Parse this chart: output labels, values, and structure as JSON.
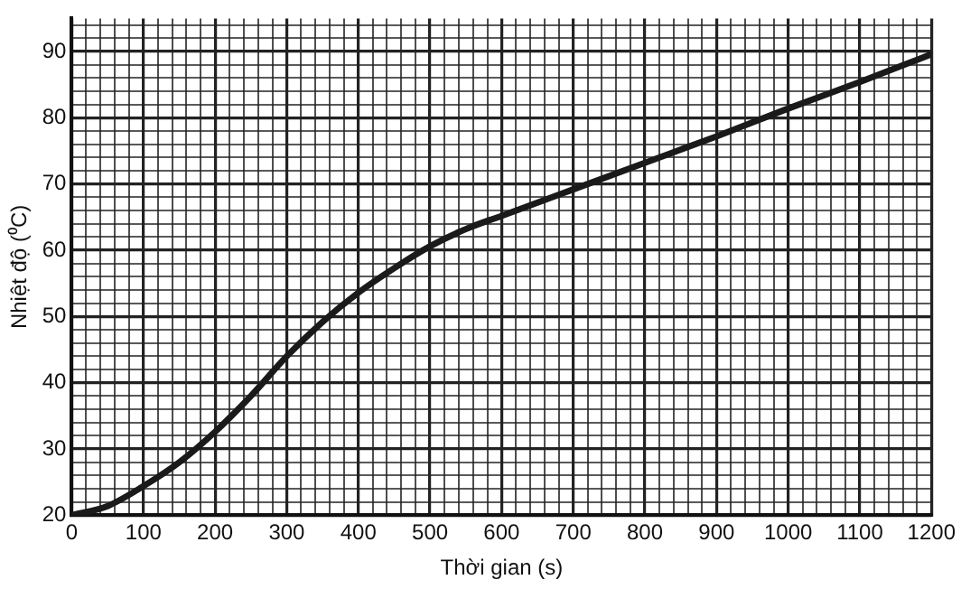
{
  "chart_data": {
    "type": "line",
    "xlabel": "Thời gian (s)",
    "ylabel": "Nhiệt độ (⁰C)",
    "x": [
      0,
      50,
      100,
      150,
      200,
      250,
      300,
      350,
      400,
      450,
      500,
      550,
      600,
      700,
      800,
      900,
      1000,
      1100,
      1200
    ],
    "series": [
      {
        "color": "#1a1a1a",
        "values": [
          20,
          21.4,
          24.4,
          28,
          32.6,
          38,
          44,
          49.2,
          53.6,
          57.3,
          60.6,
          63.2,
          65.2,
          69.2,
          73.2,
          77.2,
          81.4,
          85.4,
          89.6
        ]
      }
    ],
    "xlim": [
      0,
      1200
    ],
    "ylim": [
      20,
      95
    ],
    "xticks": [
      0,
      100,
      200,
      300,
      400,
      500,
      600,
      700,
      800,
      900,
      1000,
      1100,
      1200
    ],
    "yticks": [
      20,
      30,
      40,
      50,
      60,
      70,
      80,
      90
    ],
    "grid": true,
    "legend": false,
    "marker": "none",
    "line_style": "solid"
  }
}
